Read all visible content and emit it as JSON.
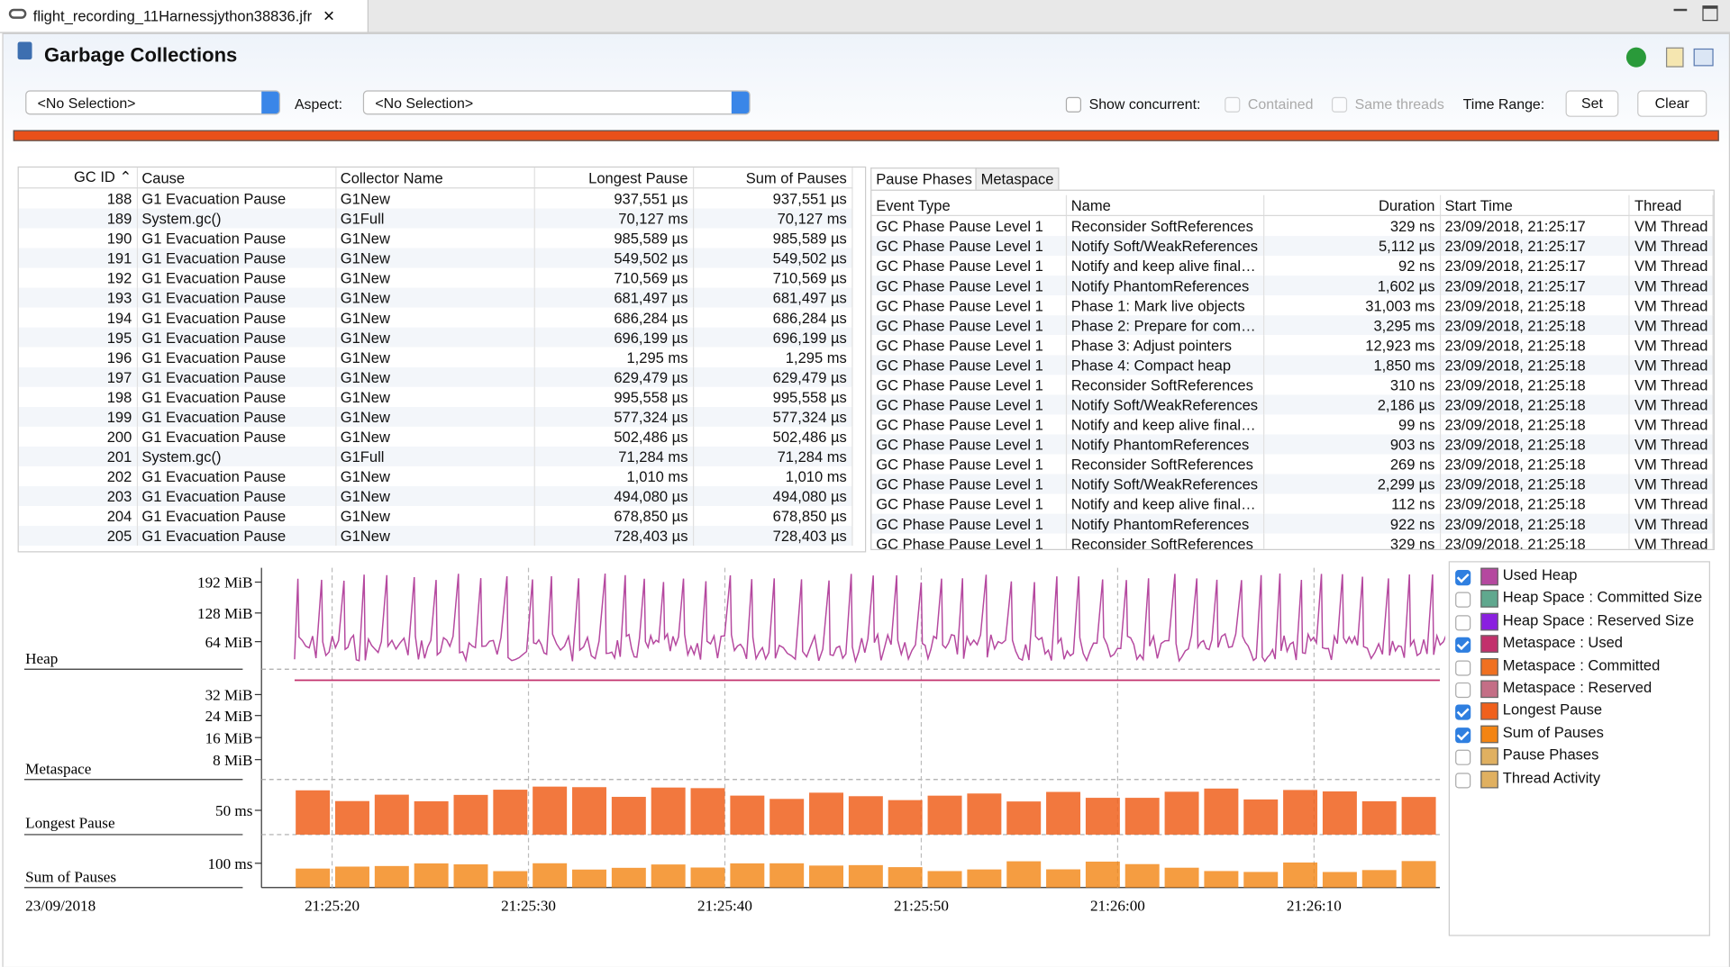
{
  "tab": {
    "title": "flight_recording_11Harnessjython38836.jfr"
  },
  "header": {
    "title": "Garbage Collections"
  },
  "toolbar": {
    "selection": "<No Selection>",
    "aspect_label": "Aspect:",
    "aspect": "<No Selection>",
    "show_concurrent": "Show concurrent:",
    "contained": "Contained",
    "same_threads": "Same threads",
    "time_range": "Time Range:",
    "set": "Set",
    "clear": "Clear"
  },
  "gc_table": {
    "columns": [
      "GC ID",
      "Cause",
      "Collector Name",
      "Longest Pause",
      "Sum of Pauses"
    ],
    "rows": [
      [
        "188",
        "G1 Evacuation Pause",
        "G1New",
        "937,551 µs",
        "937,551 µs"
      ],
      [
        "189",
        "System.gc()",
        "G1Full",
        "70,127 ms",
        "70,127 ms"
      ],
      [
        "190",
        "G1 Evacuation Pause",
        "G1New",
        "985,589 µs",
        "985,589 µs"
      ],
      [
        "191",
        "G1 Evacuation Pause",
        "G1New",
        "549,502 µs",
        "549,502 µs"
      ],
      [
        "192",
        "G1 Evacuation Pause",
        "G1New",
        "710,569 µs",
        "710,569 µs"
      ],
      [
        "193",
        "G1 Evacuation Pause",
        "G1New",
        "681,497 µs",
        "681,497 µs"
      ],
      [
        "194",
        "G1 Evacuation Pause",
        "G1New",
        "686,284 µs",
        "686,284 µs"
      ],
      [
        "195",
        "G1 Evacuation Pause",
        "G1New",
        "696,199 µs",
        "696,199 µs"
      ],
      [
        "196",
        "G1 Evacuation Pause",
        "G1New",
        "1,295 ms",
        "1,295 ms"
      ],
      [
        "197",
        "G1 Evacuation Pause",
        "G1New",
        "629,479 µs",
        "629,479 µs"
      ],
      [
        "198",
        "G1 Evacuation Pause",
        "G1New",
        "995,558 µs",
        "995,558 µs"
      ],
      [
        "199",
        "G1 Evacuation Pause",
        "G1New",
        "577,324 µs",
        "577,324 µs"
      ],
      [
        "200",
        "G1 Evacuation Pause",
        "G1New",
        "502,486 µs",
        "502,486 µs"
      ],
      [
        "201",
        "System.gc()",
        "G1Full",
        "71,284 ms",
        "71,284 ms"
      ],
      [
        "202",
        "G1 Evacuation Pause",
        "G1New",
        "1,010 ms",
        "1,010 ms"
      ],
      [
        "203",
        "G1 Evacuation Pause",
        "G1New",
        "494,080 µs",
        "494,080 µs"
      ],
      [
        "204",
        "G1 Evacuation Pause",
        "G1New",
        "678,850 µs",
        "678,850 µs"
      ],
      [
        "205",
        "G1 Evacuation Pause",
        "G1New",
        "728,403 µs",
        "728,403 µs"
      ]
    ]
  },
  "phases": {
    "tabs": [
      "Pause Phases",
      "Metaspace"
    ],
    "columns": [
      "Event Type",
      "Name",
      "Duration",
      "Start Time",
      "Thread"
    ],
    "rows": [
      [
        "GC Phase Pause Level 1",
        "Reconsider SoftReferences",
        "329 ns",
        "23/09/2018, 21:25:17",
        "VM Thread"
      ],
      [
        "GC Phase Pause Level 1",
        "Notify Soft/WeakReferences",
        "5,112 µs",
        "23/09/2018, 21:25:17",
        "VM Thread"
      ],
      [
        "GC Phase Pause Level 1",
        "Notify and keep alive final…",
        "92 ns",
        "23/09/2018, 21:25:17",
        "VM Thread"
      ],
      [
        "GC Phase Pause Level 1",
        "Notify PhantomReferences",
        "1,602 µs",
        "23/09/2018, 21:25:17",
        "VM Thread"
      ],
      [
        "GC Phase Pause Level 1",
        "Phase 1: Mark live objects",
        "31,003 ms",
        "23/09/2018, 21:25:18",
        "VM Thread"
      ],
      [
        "GC Phase Pause Level 1",
        "Phase 2: Prepare for com…",
        "3,295 ms",
        "23/09/2018, 21:25:18",
        "VM Thread"
      ],
      [
        "GC Phase Pause Level 1",
        "Phase 3: Adjust pointers",
        "12,923 ms",
        "23/09/2018, 21:25:18",
        "VM Thread"
      ],
      [
        "GC Phase Pause Level 1",
        "Phase 4: Compact heap",
        "1,850 ms",
        "23/09/2018, 21:25:18",
        "VM Thread"
      ],
      [
        "GC Phase Pause Level 1",
        "Reconsider SoftReferences",
        "310 ns",
        "23/09/2018, 21:25:18",
        "VM Thread"
      ],
      [
        "GC Phase Pause Level 1",
        "Notify Soft/WeakReferences",
        "2,186 µs",
        "23/09/2018, 21:25:18",
        "VM Thread"
      ],
      [
        "GC Phase Pause Level 1",
        "Notify and keep alive final…",
        "99 ns",
        "23/09/2018, 21:25:18",
        "VM Thread"
      ],
      [
        "GC Phase Pause Level 1",
        "Notify PhantomReferences",
        "903 ns",
        "23/09/2018, 21:25:18",
        "VM Thread"
      ],
      [
        "GC Phase Pause Level 1",
        "Reconsider SoftReferences",
        "269 ns",
        "23/09/2018, 21:25:18",
        "VM Thread"
      ],
      [
        "GC Phase Pause Level 1",
        "Notify Soft/WeakReferences",
        "2,299 µs",
        "23/09/2018, 21:25:18",
        "VM Thread"
      ],
      [
        "GC Phase Pause Level 1",
        "Notify and keep alive final…",
        "112 ns",
        "23/09/2018, 21:25:18",
        "VM Thread"
      ],
      [
        "GC Phase Pause Level 1",
        "Notify PhantomReferences",
        "922 ns",
        "23/09/2018, 21:25:18",
        "VM Thread"
      ],
      [
        "GC Phase Pause Level 1",
        "Reconsider SoftReferences",
        "329 ns",
        "23/09/2018, 21:25:18",
        "VM Thread"
      ]
    ]
  },
  "chart": {
    "lanes": [
      "Heap",
      "Metaspace",
      "Longest Pause",
      "Sum of Pauses"
    ],
    "heap_ticks": [
      "192 MiB",
      "128 MiB",
      "64 MiB"
    ],
    "metaspace_ticks": [
      "32 MiB",
      "24 MiB",
      "16 MiB",
      "8 MiB"
    ],
    "longest_ticks": [
      "50 ms"
    ],
    "sum_ticks": [
      "100 ms"
    ],
    "date": "23/09/2018",
    "time_ticks": [
      "21:25:20",
      "21:25:30",
      "21:25:40",
      "21:25:50",
      "21:26:00",
      "21:26:10"
    ]
  },
  "legend": [
    {
      "label": "Used Heap",
      "color": "#b5489f",
      "checked": true
    },
    {
      "label": "Heap Space : Committed Size",
      "color": "#5fa88e",
      "checked": false
    },
    {
      "label": "Heap Space : Reserved Size",
      "color": "#8a1fe0",
      "checked": false
    },
    {
      "label": "Metaspace : Used",
      "color": "#c2306c",
      "checked": true
    },
    {
      "label": "Metaspace : Committed",
      "color": "#f07020",
      "checked": false
    },
    {
      "label": "Metaspace : Reserved",
      "color": "#c46e86",
      "checked": false
    },
    {
      "label": "Longest Pause",
      "color": "#f0601c",
      "checked": true
    },
    {
      "label": "Sum of Pauses",
      "color": "#f38412",
      "checked": true
    },
    {
      "label": "Pause Phases",
      "color": "#e0b060",
      "checked": false
    },
    {
      "label": "Thread Activity",
      "color": "#e0b060",
      "checked": false
    }
  ]
}
